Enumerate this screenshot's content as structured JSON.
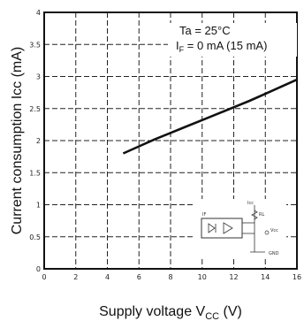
{
  "chart_data": {
    "type": "line",
    "title": "",
    "xlabel": {
      "main": "Supply voltage V",
      "sub": "CC",
      "unit": " (V)"
    },
    "ylabel": "Current consumption  Icc (mA)",
    "xlim": [
      0,
      16
    ],
    "ylim": [
      0,
      4
    ],
    "x_ticks": [
      "0",
      "2",
      "4",
      "6",
      "8",
      "10",
      "12",
      "14",
      "16"
    ],
    "y_ticks": [
      "0",
      "0.5",
      "1",
      "1.5",
      "2",
      "2.5",
      "3",
      "3.5",
      "4"
    ],
    "grid": true,
    "annotations": {
      "ta": "Ta = 25°C",
      "if_main": "I",
      "if_sub": "F",
      "if_rest": " = 0 mA (15 mA)"
    },
    "series": [
      {
        "x": [
          5,
          6,
          7,
          8,
          9,
          10,
          11,
          12,
          13,
          14,
          15,
          16
        ],
        "values": [
          1.8,
          1.91,
          2.02,
          2.12,
          2.22,
          2.32,
          2.42,
          2.52,
          2.62,
          2.73,
          2.84,
          2.95
        ]
      }
    ],
    "inset_circuit": {
      "labels": [
        "Icc",
        "Vcc",
        "GND",
        "RL",
        "IF"
      ]
    }
  }
}
